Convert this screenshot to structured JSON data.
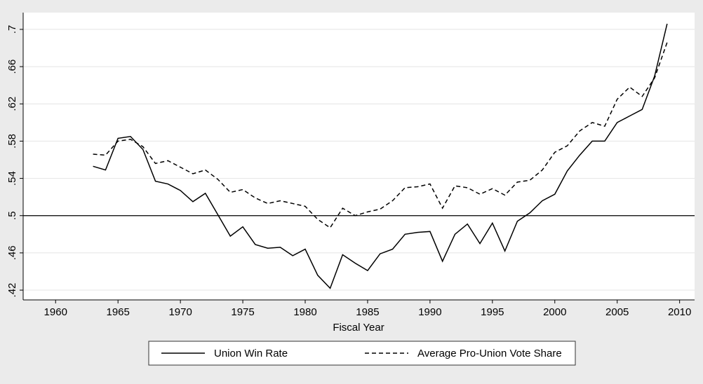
{
  "chart_data": {
    "type": "line",
    "xlabel": "Fiscal Year",
    "x": [
      1963,
      1964,
      1965,
      1966,
      1967,
      1968,
      1969,
      1970,
      1971,
      1972,
      1973,
      1974,
      1975,
      1976,
      1977,
      1978,
      1979,
      1980,
      1981,
      1982,
      1983,
      1984,
      1985,
      1986,
      1987,
      1988,
      1989,
      1990,
      1991,
      1992,
      1993,
      1994,
      1995,
      1996,
      1997,
      1998,
      1999,
      2000,
      2001,
      2002,
      2003,
      2004,
      2005,
      2006,
      2007,
      2008,
      2009
    ],
    "series": [
      {
        "name": "Union Win Rate",
        "color": "#000000",
        "style": "solid",
        "values": [
          0.553,
          0.549,
          0.583,
          0.585,
          0.571,
          0.537,
          0.534,
          0.527,
          0.515,
          0.524,
          0.501,
          0.478,
          0.488,
          0.469,
          0.465,
          0.466,
          0.457,
          0.464,
          0.436,
          0.422,
          0.458,
          0.449,
          0.441,
          0.459,
          0.464,
          0.48,
          0.482,
          0.483,
          0.451,
          0.48,
          0.491,
          0.47,
          0.492,
          0.462,
          0.494,
          0.503,
          0.516,
          0.523,
          0.548,
          0.565,
          0.58,
          0.58,
          0.6,
          0.607,
          0.614,
          0.65,
          0.706
        ]
      },
      {
        "name": "Average Pro-Union Vote Share",
        "color": "#000000",
        "style": "dashed",
        "values": [
          0.566,
          0.565,
          0.58,
          0.582,
          0.574,
          0.556,
          0.559,
          0.552,
          0.545,
          0.549,
          0.539,
          0.525,
          0.528,
          0.519,
          0.513,
          0.516,
          0.513,
          0.51,
          0.496,
          0.487,
          0.508,
          0.5,
          0.504,
          0.507,
          0.516,
          0.53,
          0.531,
          0.534,
          0.508,
          0.532,
          0.53,
          0.523,
          0.529,
          0.522,
          0.536,
          0.538,
          0.549,
          0.568,
          0.575,
          0.591,
          0.6,
          0.596,
          0.625,
          0.638,
          0.628,
          0.648,
          0.686
        ]
      }
    ],
    "xlim": [
      1957.4,
      2011.2
    ],
    "xticks": [
      1960,
      1965,
      1970,
      1975,
      1980,
      1985,
      1990,
      1995,
      2000,
      2005,
      2010
    ],
    "ylim": [
      0.4095,
      0.718
    ],
    "yticks": [
      {
        "value": 0.42,
        "label": ".42"
      },
      {
        "value": 0.46,
        "label": ".46"
      },
      {
        "value": 0.5,
        "label": ".5"
      },
      {
        "value": 0.54,
        "label": ".54"
      },
      {
        "value": 0.58,
        "label": ".58"
      },
      {
        "value": 0.62,
        "label": ".62"
      },
      {
        "value": 0.66,
        "label": ".66"
      },
      {
        "value": 0.7,
        "label": ".7"
      }
    ],
    "refline": 0.5,
    "grid": true
  }
}
